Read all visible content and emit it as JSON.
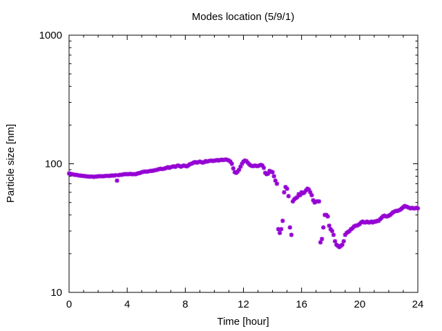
{
  "chart_data": {
    "type": "scatter",
    "title": "Modes location (5/9/1)",
    "xlabel": "Time [hour]",
    "ylabel": "Particle size [nm]",
    "xlim": [
      0,
      24
    ],
    "ylim": [
      10,
      1000
    ],
    "yscale": "log",
    "x_ticks": [
      0,
      4,
      8,
      12,
      16,
      20,
      24
    ],
    "x_tick_labels": [
      "0",
      "4",
      "8",
      "12",
      "16",
      "20",
      "24"
    ],
    "y_ticks": [
      10,
      100,
      1000
    ],
    "y_tick_labels": [
      "10",
      "100",
      "1000"
    ],
    "grid": false,
    "marker_color": "#9400d3",
    "marker": "asterisk",
    "series": [
      {
        "points": [
          [
            0.0,
            84
          ],
          [
            0.1,
            83.5
          ],
          [
            0.2,
            83
          ],
          [
            0.3,
            82.5
          ],
          [
            0.4,
            82
          ],
          [
            0.5,
            82
          ],
          [
            0.6,
            81.5
          ],
          [
            0.7,
            81
          ],
          [
            0.8,
            81
          ],
          [
            0.9,
            80.5
          ],
          [
            1.0,
            80.5
          ],
          [
            1.1,
            80
          ],
          [
            1.2,
            80
          ],
          [
            1.3,
            79.5
          ],
          [
            1.4,
            79.5
          ],
          [
            1.5,
            79.5
          ],
          [
            1.6,
            79.5
          ],
          [
            1.7,
            79
          ],
          [
            1.8,
            79.5
          ],
          [
            1.9,
            79.5
          ],
          [
            2.0,
            80
          ],
          [
            2.1,
            80
          ],
          [
            2.2,
            80
          ],
          [
            2.3,
            80
          ],
          [
            2.4,
            80
          ],
          [
            2.5,
            80.5
          ],
          [
            2.6,
            80.5
          ],
          [
            2.7,
            80.5
          ],
          [
            2.8,
            80.5
          ],
          [
            2.9,
            81
          ],
          [
            3.0,
            81
          ],
          [
            3.1,
            81
          ],
          [
            3.2,
            81.5
          ],
          [
            3.3,
            74
          ],
          [
            3.4,
            81.5
          ],
          [
            3.5,
            82
          ],
          [
            3.6,
            82
          ],
          [
            3.7,
            82.5
          ],
          [
            3.8,
            83
          ],
          [
            3.9,
            83
          ],
          [
            4.0,
            83
          ],
          [
            4.1,
            83
          ],
          [
            4.2,
            83.5
          ],
          [
            4.3,
            83
          ],
          [
            4.4,
            83
          ],
          [
            4.5,
            83
          ],
          [
            4.6,
            83
          ],
          [
            4.7,
            84
          ],
          [
            4.8,
            84.5
          ],
          [
            4.9,
            85
          ],
          [
            5.0,
            86
          ],
          [
            5.1,
            86.5
          ],
          [
            5.2,
            87
          ],
          [
            5.3,
            87
          ],
          [
            5.4,
            87
          ],
          [
            5.5,
            87.5
          ],
          [
            5.6,
            88
          ],
          [
            5.7,
            88
          ],
          [
            5.8,
            88.5
          ],
          [
            5.9,
            89
          ],
          [
            6.0,
            89.5
          ],
          [
            6.1,
            90
          ],
          [
            6.2,
            91
          ],
          [
            6.3,
            91.5
          ],
          [
            6.4,
            91
          ],
          [
            6.5,
            91.5
          ],
          [
            6.6,
            92
          ],
          [
            6.7,
            93
          ],
          [
            6.8,
            94
          ],
          [
            6.9,
            93
          ],
          [
            7.0,
            94
          ],
          [
            7.1,
            95
          ],
          [
            7.2,
            95.5
          ],
          [
            7.3,
            94.5
          ],
          [
            7.4,
            96
          ],
          [
            7.5,
            97
          ],
          [
            7.6,
            96
          ],
          [
            7.7,
            95
          ],
          [
            7.8,
            96
          ],
          [
            7.9,
            97
          ],
          [
            8.0,
            96
          ],
          [
            8.1,
            95.5
          ],
          [
            8.2,
            97
          ],
          [
            8.3,
            99
          ],
          [
            8.4,
            100
          ],
          [
            8.5,
            101
          ],
          [
            8.6,
            102.5
          ],
          [
            8.7,
            103
          ],
          [
            8.8,
            102
          ],
          [
            8.9,
            103
          ],
          [
            9.0,
            104
          ],
          [
            9.1,
            103
          ],
          [
            9.2,
            102
          ],
          [
            9.3,
            103
          ],
          [
            9.4,
            105
          ],
          [
            9.5,
            104
          ],
          [
            9.6,
            105
          ],
          [
            9.7,
            105.5
          ],
          [
            9.8,
            106
          ],
          [
            9.9,
            105
          ],
          [
            10.0,
            106
          ],
          [
            10.1,
            106
          ],
          [
            10.2,
            107
          ],
          [
            10.3,
            106
          ],
          [
            10.4,
            107
          ],
          [
            10.5,
            107.5
          ],
          [
            10.6,
            107
          ],
          [
            10.7,
            107.5
          ],
          [
            10.8,
            108
          ],
          [
            10.9,
            107
          ],
          [
            11.0,
            106
          ],
          [
            11.1,
            104
          ],
          [
            11.2,
            100
          ],
          [
            11.3,
            92
          ],
          [
            11.4,
            86
          ],
          [
            11.5,
            85
          ],
          [
            11.6,
            87
          ],
          [
            11.7,
            90
          ],
          [
            11.8,
            95
          ],
          [
            11.9,
            100
          ],
          [
            12.0,
            104
          ],
          [
            12.1,
            106
          ],
          [
            12.2,
            105
          ],
          [
            12.3,
            102
          ],
          [
            12.4,
            99
          ],
          [
            12.5,
            97
          ],
          [
            12.6,
            96
          ],
          [
            12.7,
            96
          ],
          [
            12.8,
            97
          ],
          [
            12.9,
            96
          ],
          [
            13.0,
            96
          ],
          [
            13.1,
            97
          ],
          [
            13.2,
            98
          ],
          [
            13.3,
            97
          ],
          [
            13.4,
            93
          ],
          [
            13.5,
            85
          ],
          [
            13.6,
            83
          ],
          [
            13.7,
            84
          ],
          [
            13.8,
            88
          ],
          [
            13.9,
            87
          ],
          [
            14.0,
            86
          ],
          [
            14.1,
            80
          ],
          [
            14.2,
            74
          ],
          [
            14.3,
            70
          ],
          [
            14.4,
            31
          ],
          [
            14.5,
            29
          ],
          [
            14.6,
            31
          ],
          [
            14.7,
            36
          ],
          [
            14.8,
            60
          ],
          [
            14.9,
            66
          ],
          [
            15.0,
            64
          ],
          [
            15.1,
            56
          ],
          [
            15.2,
            32
          ],
          [
            15.3,
            28
          ],
          [
            15.4,
            51
          ],
          [
            15.5,
            53
          ],
          [
            15.6,
            54
          ],
          [
            15.7,
            55
          ],
          [
            15.8,
            58
          ],
          [
            15.9,
            57
          ],
          [
            16.0,
            60
          ],
          [
            16.1,
            59
          ],
          [
            16.2,
            60
          ],
          [
            16.3,
            62
          ],
          [
            16.4,
            64
          ],
          [
            16.5,
            63
          ],
          [
            16.6,
            60
          ],
          [
            16.7,
            57
          ],
          [
            16.8,
            52
          ],
          [
            16.9,
            50
          ],
          [
            17.0,
            51
          ],
          [
            17.1,
            51
          ],
          [
            17.2,
            51
          ],
          [
            17.3,
            24.5
          ],
          [
            17.4,
            26
          ],
          [
            17.5,
            32
          ],
          [
            17.6,
            40
          ],
          [
            17.7,
            40
          ],
          [
            17.8,
            39
          ],
          [
            17.9,
            33
          ],
          [
            18.0,
            31
          ],
          [
            18.1,
            30
          ],
          [
            18.2,
            28
          ],
          [
            18.3,
            25
          ],
          [
            18.4,
            23.5
          ],
          [
            18.5,
            23
          ],
          [
            18.6,
            22.5
          ],
          [
            18.7,
            23
          ],
          [
            18.8,
            23.5
          ],
          [
            18.9,
            25
          ],
          [
            19.0,
            28
          ],
          [
            19.1,
            29
          ],
          [
            19.2,
            29.5
          ],
          [
            19.3,
            30
          ],
          [
            19.4,
            31
          ],
          [
            19.5,
            31.5
          ],
          [
            19.6,
            32.5
          ],
          [
            19.7,
            33
          ],
          [
            19.8,
            33
          ],
          [
            19.9,
            33.5
          ],
          [
            20.0,
            34
          ],
          [
            20.1,
            35
          ],
          [
            20.2,
            35.5
          ],
          [
            20.3,
            35
          ],
          [
            20.4,
            35
          ],
          [
            20.5,
            35.5
          ],
          [
            20.6,
            35
          ],
          [
            20.7,
            35
          ],
          [
            20.8,
            35.5
          ],
          [
            20.9,
            35
          ],
          [
            21.0,
            35.5
          ],
          [
            21.1,
            35.5
          ],
          [
            21.2,
            36
          ],
          [
            21.3,
            36
          ],
          [
            21.4,
            37
          ],
          [
            21.5,
            38
          ],
          [
            21.6,
            39
          ],
          [
            21.7,
            39.5
          ],
          [
            21.8,
            39
          ],
          [
            21.9,
            39
          ],
          [
            22.0,
            39.5
          ],
          [
            22.1,
            40
          ],
          [
            22.2,
            41
          ],
          [
            22.3,
            42
          ],
          [
            22.4,
            42.5
          ],
          [
            22.5,
            43
          ],
          [
            22.6,
            43
          ],
          [
            22.7,
            43.5
          ],
          [
            22.8,
            44
          ],
          [
            22.9,
            45
          ],
          [
            23.0,
            46
          ],
          [
            23.1,
            47
          ],
          [
            23.2,
            46.5
          ],
          [
            23.3,
            46
          ],
          [
            23.4,
            45.5
          ],
          [
            23.5,
            45
          ],
          [
            23.6,
            45.5
          ],
          [
            23.7,
            45
          ],
          [
            23.8,
            45
          ],
          [
            23.9,
            45.5
          ],
          [
            24.0,
            45
          ]
        ]
      }
    ]
  }
}
